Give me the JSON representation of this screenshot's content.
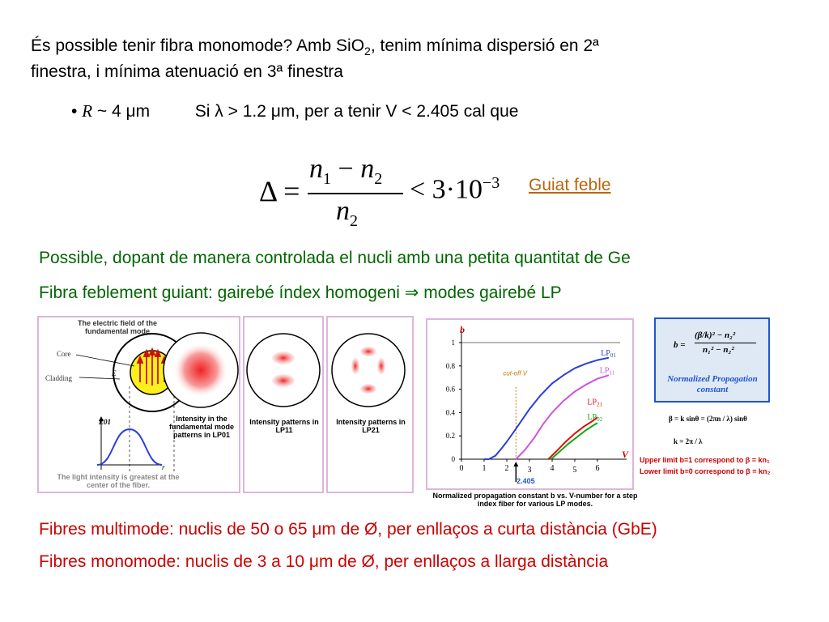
{
  "intro": {
    "line1_pre": "És possible tenir fibra monomode? Amb SiO",
    "line1_sub": "2",
    "line1_post": ", tenim mínima dispersió en 2ª",
    "line2": "finestra, i mínima atenuació en 3ª finestra"
  },
  "bullet": {
    "symbol": "•",
    "r_symbol": "R",
    "r_text": "~ 4 μm",
    "cond": "Si λ > 1.2 μm, per a tenir V < 2.405 cal que"
  },
  "formula": {
    "delta": "Δ =",
    "n1": "n",
    "sub1": "1",
    "minus": "−",
    "n2": "n",
    "sub2": "2",
    "lt": "< 3·10",
    "exp": "−3"
  },
  "link": {
    "label": "Guiat feble"
  },
  "green": {
    "line1": "Possible, dopant de manera controlada el nucli amb una petita quantitat de Ge",
    "line2": "Fibra feblement guiant: gairebé índex homogeni ⇒ modes gairebé LP"
  },
  "panel1": {
    "title": "The electric field of the fundamental mode",
    "core": "Core",
    "cladding": "Cladding",
    "e": "E",
    "e01": "E01",
    "r": "r",
    "bottom": "The light intensity is greatest at the center of the fiber.",
    "intensity_caption": "Intensity in the fundamental mode patterns in LP01"
  },
  "panel2": {
    "caption": "Intensity patterns in LP11"
  },
  "panel3": {
    "caption": "Intensity patterns in LP21"
  },
  "chart_data": {
    "type": "line",
    "ylabel": "b",
    "xlabel": "V",
    "x_ticks": [
      "0",
      "1",
      "2",
      "3",
      "4",
      "5",
      "6"
    ],
    "y_ticks": [
      "0",
      "0.2",
      "0.4",
      "0.6",
      "0.8",
      "1"
    ],
    "xlim": [
      0,
      7
    ],
    "ylim": [
      0,
      1
    ],
    "cutoff_label": "cut-off V",
    "cutoff_value": "2.405",
    "cutoff_x": 2.405,
    "series": [
      {
        "name": "LP01",
        "color": "#2a3fd6",
        "x": [
          1.0,
          1.2,
          1.5,
          1.8,
          2.0,
          2.4,
          3.0,
          3.5,
          4.0,
          4.5,
          5.0,
          5.5,
          6.0,
          6.5
        ],
        "y": [
          0.0,
          0.0,
          0.03,
          0.1,
          0.15,
          0.26,
          0.43,
          0.55,
          0.65,
          0.72,
          0.78,
          0.82,
          0.85,
          0.87
        ]
      },
      {
        "name": "LP11",
        "color": "#cc55dd",
        "x": [
          2.405,
          2.8,
          3.2,
          3.6,
          4.0,
          4.5,
          5.0,
          5.5,
          6.0,
          6.5
        ],
        "y": [
          0.0,
          0.08,
          0.18,
          0.3,
          0.4,
          0.5,
          0.58,
          0.64,
          0.69,
          0.72
        ]
      },
      {
        "name": "LP21",
        "color": "#dd1111",
        "x": [
          3.832,
          4.2,
          4.6,
          5.0,
          5.4,
          5.8,
          6.0
        ],
        "y": [
          0.0,
          0.07,
          0.15,
          0.22,
          0.28,
          0.33,
          0.36
        ]
      },
      {
        "name": "LP02",
        "color": "#11aa11",
        "x": [
          3.95,
          4.3,
          4.7,
          5.1,
          5.5,
          5.9,
          6.0
        ],
        "y": [
          0.0,
          0.06,
          0.13,
          0.19,
          0.25,
          0.3,
          0.31
        ]
      }
    ],
    "caption": "Normalized propagation constant b vs. V-number for a step index fiber for various LP modes."
  },
  "formula_box": {
    "title": "Normalized Propagation constant",
    "lhs": "b =",
    "num": "(β/k)² − n₂²",
    "den": "n₁² − n₂²",
    "eq1": "β = k sinθ = (2πn / λ) sinθ",
    "eq2": "k = 2π / λ",
    "upper": "Upper limit b=1 correspond to β = kn₁",
    "lower": "Lower limit b=0 correspond to β = kn₂"
  },
  "bottom": {
    "line1": "Fibres multimode: nuclis de 50 o 65 μm de Ø, per enllaços a curta distància (GbE)",
    "line2": "Fibres monomode: nuclis de 3 a 10 μm de Ø, per enllaços a llarga distància"
  },
  "colors": {
    "green": "#006600",
    "red": "#cc0000",
    "link": "#b8650a",
    "panel_border": "#ddb5dd",
    "box_border": "#2255cc"
  }
}
